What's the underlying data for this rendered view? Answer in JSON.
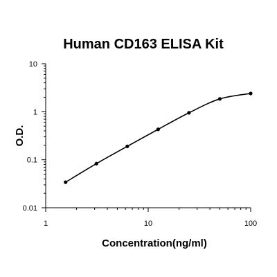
{
  "colors": {
    "background": "#ffffff",
    "axis": "#000000",
    "series": "#000000",
    "text": "#000000"
  },
  "chart_data": {
    "type": "line",
    "title": "Human CD163 ELISA Kit",
    "xlabel": "Concentration(ng/ml)",
    "ylabel": "O.D.",
    "x_scale": "log",
    "y_scale": "log",
    "xlim": [
      1,
      100
    ],
    "ylim": [
      0.01,
      10
    ],
    "grid": false,
    "legend": "none",
    "x_ticks": [
      {
        "value": 1,
        "label": "1"
      },
      {
        "value": 10,
        "label": "10"
      },
      {
        "value": 100,
        "label": "100"
      }
    ],
    "y_ticks": [
      {
        "value": 0.01,
        "label": "0.01"
      },
      {
        "value": 0.1,
        "label": "0.1"
      },
      {
        "value": 1,
        "label": "1"
      },
      {
        "value": 10,
        "label": "10"
      }
    ],
    "series": [
      {
        "x": [
          1.5625,
          3.125,
          6.25,
          12.5,
          25,
          50,
          100
        ],
        "y": [
          0.034,
          0.083,
          0.19,
          0.43,
          0.95,
          1.85,
          2.4
        ]
      }
    ]
  }
}
